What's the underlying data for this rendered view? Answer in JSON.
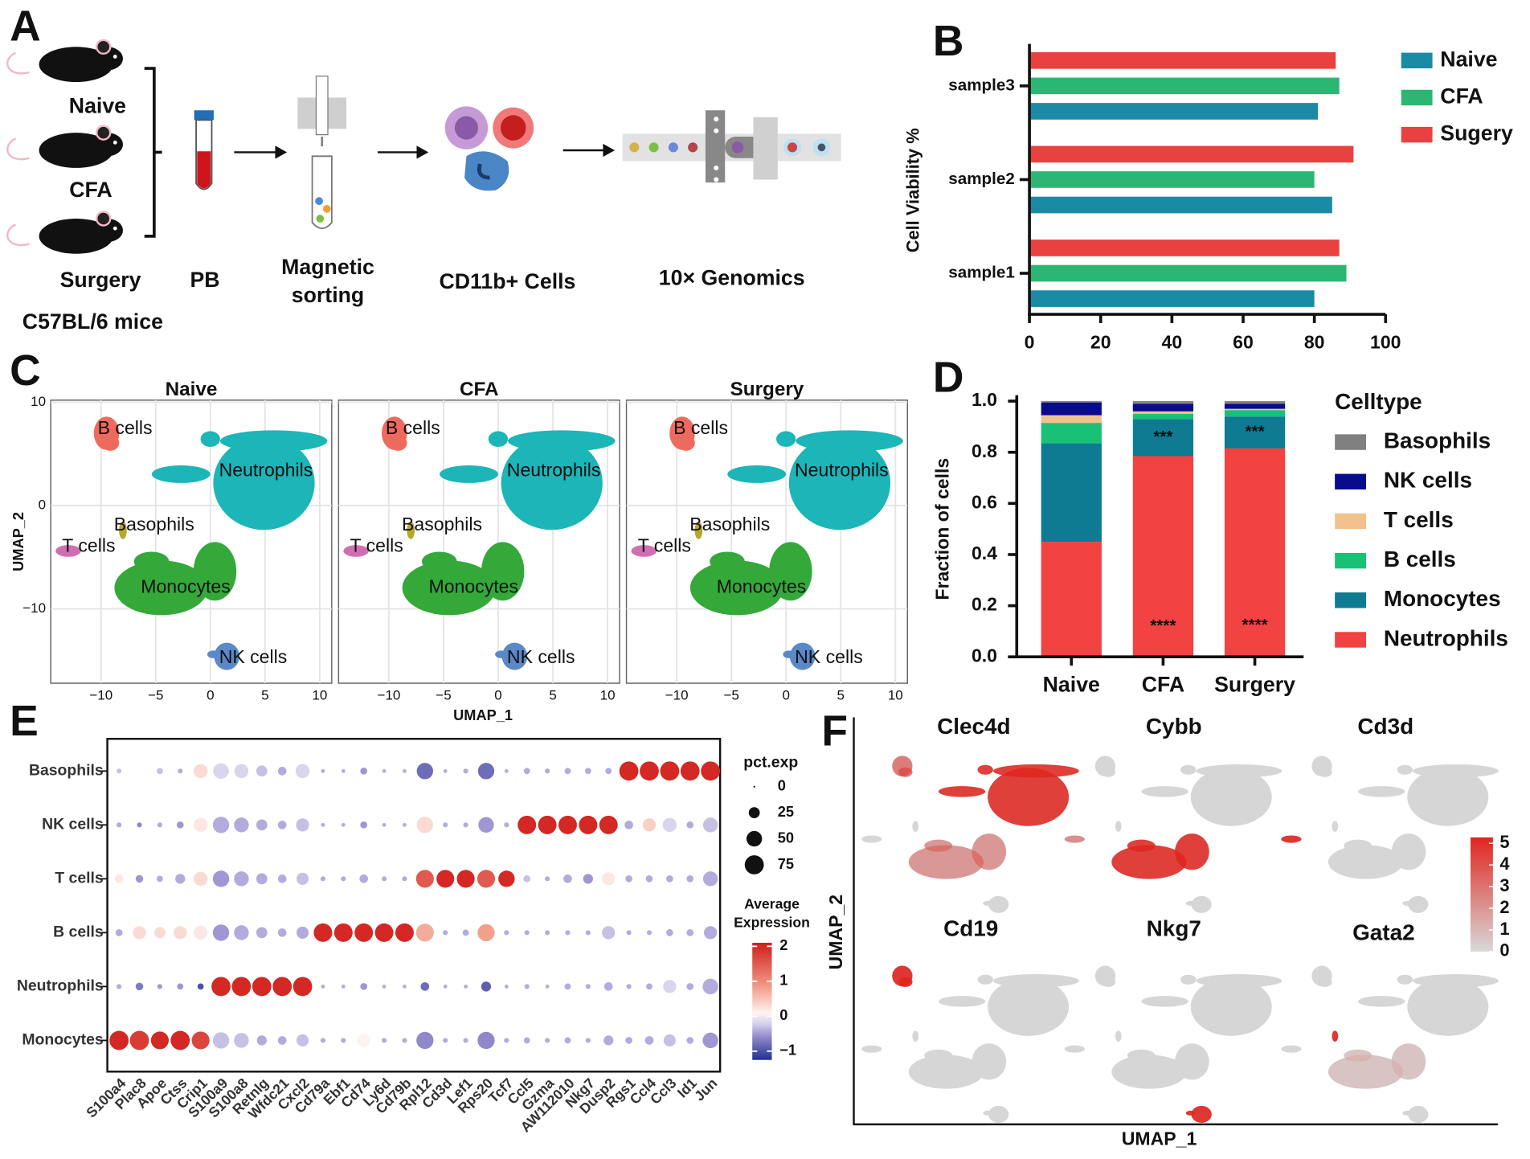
{
  "panel_labels": [
    "A",
    "B",
    "C",
    "D",
    "E",
    "F"
  ],
  "workflow": {
    "mice": [
      "Naive",
      "CFA",
      "Surgery"
    ],
    "strain": "C57BL/6 mice",
    "steps": [
      "PB",
      "Magnetic sorting",
      "CD11b+ Cells",
      "10× Genomics"
    ]
  },
  "chart_data": [
    {
      "type": "bar",
      "orientation": "horizontal",
      "categories": [
        "sample1",
        "sample2",
        "sample3"
      ],
      "series": [
        {
          "name": "Naive",
          "color": "#1b8aa5",
          "values": [
            80,
            85,
            81
          ]
        },
        {
          "name": "CFA",
          "color": "#2bb673",
          "values": [
            89,
            80,
            87
          ]
        },
        {
          "name": "Sugery",
          "color": "#e8413f",
          "values": [
            87,
            91,
            86
          ]
        }
      ],
      "xlim": [
        0,
        100
      ],
      "xticks": [
        0,
        20,
        40,
        60,
        80,
        100
      ],
      "ylabel": "Cell Viability %",
      "legend": "right"
    },
    {
      "type": "stacked_bar",
      "categories": [
        "Naive",
        "CFA",
        "Surgery"
      ],
      "series": [
        {
          "name": "Neutrophils",
          "color": "#f24242",
          "values": [
            0.45,
            0.785,
            0.815
          ]
        },
        {
          "name": "Monocytes",
          "color": "#0e7b93",
          "values": [
            0.385,
            0.145,
            0.125
          ]
        },
        {
          "name": "B cells",
          "color": "#19c177",
          "values": [
            0.08,
            0.02,
            0.025
          ]
        },
        {
          "name": "T cells",
          "color": "#f3c18b",
          "values": [
            0.03,
            0.01,
            0.005
          ]
        },
        {
          "name": "NK cells",
          "color": "#0a0a8c",
          "values": [
            0.05,
            0.03,
            0.02
          ]
        },
        {
          "name": "Basophils",
          "color": "#808080",
          "values": [
            0.005,
            0.01,
            0.01
          ]
        }
      ],
      "ylim": [
        0,
        1
      ],
      "yticks": [
        {
          "value": 0,
          "label": "0.0"
        },
        0.2,
        0.4,
        0.6,
        0.8,
        {
          "value": 1,
          "label": "1.0"
        }
      ],
      "ylabel": "Fraction of cells",
      "legend_title": "Celltype",
      "legend": "right",
      "annotations": [
        {
          "text": "***",
          "category": "CFA",
          "series": "Monocytes"
        },
        {
          "text": "***",
          "category": "Surgery",
          "series": "Monocytes"
        },
        {
          "text": "****",
          "category": "CFA",
          "series": "Neutrophils"
        },
        {
          "text": "****",
          "category": "Surgery",
          "series": "Neutrophils"
        }
      ]
    },
    {
      "type": "umap",
      "panels": [
        "Naive",
        "CFA",
        "Surgery"
      ],
      "xlabel": "UMAP_1",
      "ylabel": "UMAP_2",
      "xlim": [
        -14.6,
        11.1
      ],
      "ylim": [
        -17.2,
        10.2
      ],
      "xticks": [
        {
          "value": -10,
          "label": "−10"
        },
        {
          "value": -5,
          "label": "−5"
        },
        0,
        5,
        10
      ],
      "yticks": [
        {
          "value": -10,
          "label": "−10"
        },
        0,
        10
      ],
      "grid": true,
      "clusters": [
        {
          "name": "B cells",
          "color": "#ef6a5e",
          "x": -9.5,
          "y": 7
        },
        {
          "name": "Neutrophils",
          "color": "#1cb5b8",
          "x": 4.9,
          "y": 3.6
        },
        {
          "name": "Basophils",
          "color": "#b5a82a",
          "x": -8,
          "y": -2.4
        },
        {
          "name": "T cells",
          "color": "#d06eb2",
          "x": -13,
          "y": -4.4
        },
        {
          "name": "Monocytes",
          "color": "#34a93a",
          "x": -3.6,
          "y": -7.5
        },
        {
          "name": "NK cells",
          "color": "#5b88c8",
          "x": 1.5,
          "y": -14.6
        }
      ]
    },
    {
      "type": "dot",
      "genes": [
        "S100a4",
        "Plac8",
        "Apoe",
        "Ctss",
        "Crip1",
        "S100a9",
        "S100a8",
        "Retnlg",
        "Wfdc21",
        "Cxcl2",
        "Cd79a",
        "Ebf1",
        "Cd74",
        "Ly6d",
        "Cd79b",
        "Rpl12",
        "Cd3d",
        "Lef1",
        "Rps20",
        "Tcf7",
        "Ccl5",
        "Gzma",
        "AW112010",
        "Nkg7",
        "Dusp2",
        "Rgs1",
        "Ccl4",
        "Ccl3",
        "Id1",
        "Jun"
      ],
      "cell_types": [
        "Basophils",
        "NK cells",
        "T cells",
        "B cells",
        "Neutrophils",
        "Monocytes"
      ],
      "pct": [
        [
          5,
          0,
          8,
          5,
          40,
          50,
          40,
          25,
          15,
          40,
          3,
          3,
          10,
          3,
          3,
          55,
          3,
          5,
          55,
          3,
          8,
          5,
          8,
          8,
          8,
          75,
          75,
          75,
          75,
          75
        ],
        [
          5,
          5,
          5,
          10,
          40,
          55,
          45,
          25,
          15,
          35,
          3,
          3,
          10,
          3,
          3,
          55,
          5,
          5,
          50,
          5,
          70,
          70,
          70,
          70,
          70,
          15,
          35,
          40,
          10,
          45
        ],
        [
          15,
          12,
          8,
          20,
          40,
          55,
          45,
          25,
          15,
          30,
          5,
          5,
          15,
          5,
          5,
          65,
          65,
          65,
          65,
          55,
          10,
          5,
          15,
          20,
          35,
          10,
          10,
          10,
          10,
          45
        ],
        [
          10,
          35,
          25,
          35,
          40,
          55,
          45,
          25,
          15,
          30,
          70,
          70,
          70,
          70,
          70,
          65,
          5,
          8,
          60,
          5,
          5,
          5,
          5,
          5,
          35,
          5,
          5,
          10,
          10,
          35
        ],
        [
          5,
          12,
          5,
          8,
          8,
          75,
          75,
          75,
          75,
          75,
          3,
          3,
          10,
          3,
          3,
          15,
          3,
          3,
          20,
          3,
          5,
          3,
          8,
          5,
          15,
          5,
          8,
          35,
          10,
          50
        ],
        [
          75,
          75,
          65,
          75,
          65,
          55,
          45,
          20,
          15,
          30,
          5,
          5,
          35,
          5,
          5,
          60,
          5,
          5,
          60,
          5,
          8,
          5,
          8,
          5,
          20,
          10,
          15,
          30,
          10,
          50
        ]
      ],
      "avg": [
        [
          -0.3,
          0,
          -0.3,
          -0.4,
          0.3,
          -0.2,
          -0.2,
          -0.3,
          -0.4,
          -0.2,
          -0.4,
          -0.4,
          -0.5,
          -0.4,
          -0.4,
          -0.8,
          -0.4,
          -0.4,
          -0.8,
          -0.4,
          -0.4,
          -0.4,
          -0.4,
          -0.4,
          -0.4,
          2,
          2,
          2,
          2,
          2
        ],
        [
          -0.4,
          -0.6,
          -0.4,
          -0.5,
          0.2,
          -0.4,
          -0.4,
          -0.4,
          -0.4,
          -0.3,
          -0.4,
          -0.4,
          -0.5,
          -0.4,
          -0.4,
          0.3,
          -0.4,
          -0.4,
          -0.5,
          -0.4,
          2,
          2,
          2,
          2,
          2,
          -0.4,
          0.4,
          -0.2,
          -0.4,
          -0.3
        ],
        [
          0.2,
          -0.5,
          -0.4,
          -0.4,
          0.3,
          -0.5,
          -0.4,
          -0.4,
          -0.4,
          -0.3,
          -0.4,
          -0.4,
          -0.4,
          -0.4,
          -0.4,
          1.5,
          2,
          2,
          1.5,
          2,
          -0.3,
          -0.4,
          -0.4,
          -0.5,
          0.2,
          -0.4,
          -0.4,
          -0.4,
          -0.4,
          -0.4
        ],
        [
          -0.4,
          0.3,
          0.3,
          0.3,
          0.2,
          -0.5,
          -0.4,
          -0.4,
          -0.4,
          -0.4,
          2,
          2,
          2,
          2,
          2,
          0.7,
          -0.4,
          -0.4,
          0.8,
          -0.4,
          -0.4,
          -0.4,
          -0.4,
          -0.4,
          -0.3,
          -0.4,
          -0.4,
          -0.4,
          -0.4,
          -0.4
        ],
        [
          -0.4,
          -0.7,
          -0.5,
          -0.5,
          -1,
          2,
          2,
          2,
          2,
          2,
          -0.4,
          -0.4,
          -0.5,
          -0.4,
          -0.4,
          -0.8,
          -0.4,
          -0.4,
          -0.9,
          -0.4,
          -0.4,
          -0.4,
          -0.4,
          -0.4,
          -0.4,
          -0.4,
          -0.4,
          -0.2,
          -0.4,
          -0.4
        ],
        [
          2,
          1.8,
          2,
          2,
          1.7,
          -0.3,
          -0.3,
          -0.4,
          -0.4,
          -0.3,
          -0.4,
          -0.4,
          0.1,
          -0.4,
          -0.4,
          -0.6,
          -0.4,
          -0.4,
          -0.6,
          -0.4,
          -0.4,
          -0.4,
          -0.4,
          -0.4,
          -0.4,
          -0.4,
          -0.4,
          -0.3,
          -0.4,
          -0.5
        ]
      ],
      "size_legend_title": "pct.exp",
      "size_ticks": [
        0,
        25,
        50,
        75
      ],
      "color_legend_title": "Average Expression",
      "clim": [
        -1.25,
        2.1
      ],
      "cticks": [
        2,
        1,
        0,
        {
          "value": -1,
          "label": "−1"
        }
      ]
    },
    {
      "type": "feature",
      "genes": [
        "Clec4d",
        "Cybb",
        "Cd3d",
        "Cd19",
        "Nkg7",
        "Gata2"
      ],
      "xlabel": "UMAP_1",
      "ylabel": "UMAP_2",
      "clim": [
        0,
        5.27
      ],
      "cticks": [
        0,
        1,
        2,
        3,
        4,
        5
      ]
    }
  ]
}
